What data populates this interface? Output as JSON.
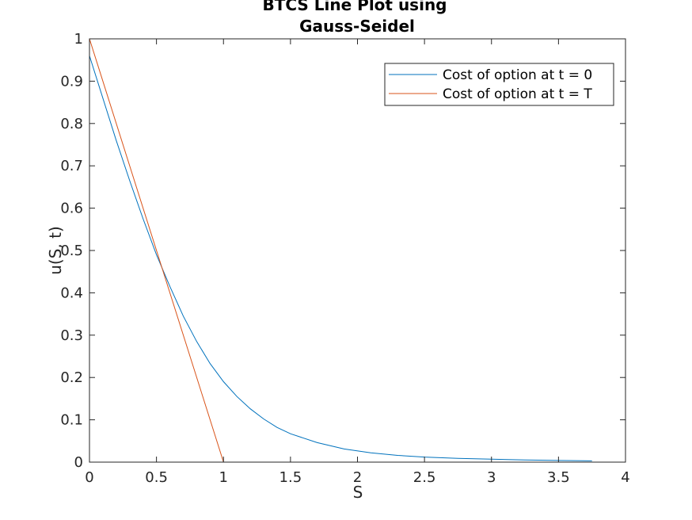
{
  "chart_data": {
    "type": "line",
    "title": [
      "BTCS Line Plot using",
      "Gauss-Seidel"
    ],
    "xlabel": "S",
    "ylabel": "u(S, t)",
    "xlim": [
      0,
      4
    ],
    "ylim": [
      0,
      1
    ],
    "xticks": [
      0,
      0.5,
      1,
      1.5,
      2,
      2.5,
      3,
      3.5,
      4
    ],
    "xtick_labels": [
      "0",
      "0.5",
      "1",
      "1.5",
      "2",
      "2.5",
      "3",
      "3.5",
      "4"
    ],
    "yticks": [
      0,
      0.1,
      0.2,
      0.3,
      0.4,
      0.5,
      0.6,
      0.7,
      0.8,
      0.9,
      1
    ],
    "ytick_labels": [
      "0",
      "0.1",
      "0.2",
      "0.3",
      "0.4",
      "0.5",
      "0.6",
      "0.7",
      "0.8",
      "0.9",
      "1"
    ],
    "grid": false,
    "legend_position": "top-right",
    "series": [
      {
        "name": "Cost of option at t = 0",
        "color": "#0072BD",
        "x": [
          0,
          0.1,
          0.2,
          0.3,
          0.4,
          0.5,
          0.6,
          0.7,
          0.8,
          0.9,
          1.0,
          1.1,
          1.2,
          1.3,
          1.4,
          1.5,
          1.7,
          1.9,
          2.1,
          2.3,
          2.5,
          2.75,
          3.0,
          3.25,
          3.5,
          3.75
        ],
        "y": [
          0.96,
          0.86,
          0.76,
          0.665,
          0.575,
          0.49,
          0.415,
          0.345,
          0.285,
          0.233,
          0.19,
          0.155,
          0.126,
          0.102,
          0.082,
          0.067,
          0.046,
          0.031,
          0.022,
          0.016,
          0.012,
          0.009,
          0.007,
          0.005,
          0.004,
          0.003
        ]
      },
      {
        "name": "Cost of option at t = T",
        "color": "#D95319",
        "x": [
          0,
          1,
          3.75
        ],
        "y": [
          1,
          0,
          0
        ]
      }
    ]
  }
}
